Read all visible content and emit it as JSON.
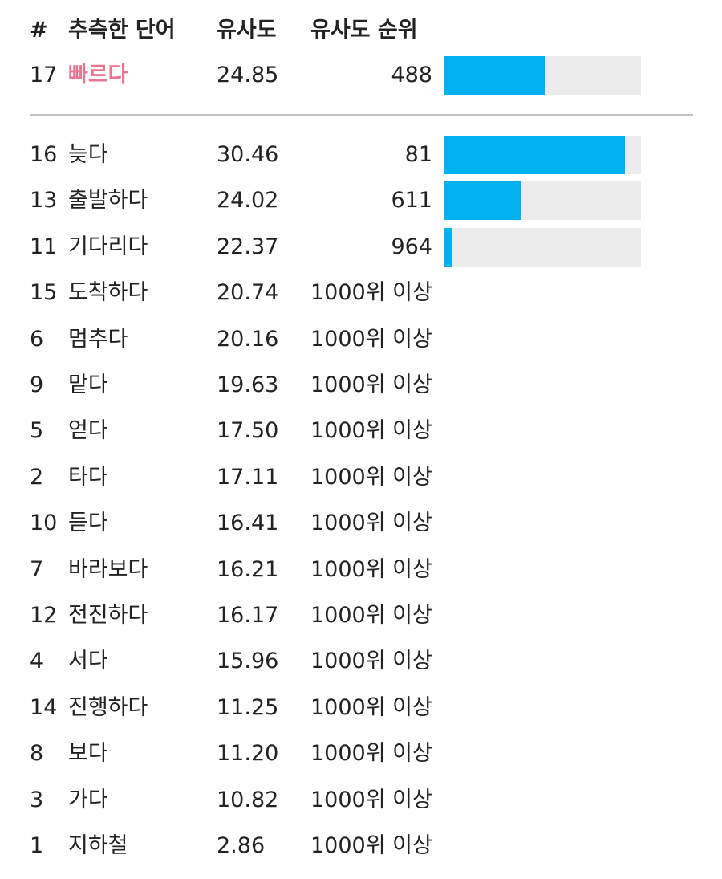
{
  "header": {
    "num": "#",
    "word": "추측한 단어",
    "similarity": "유사도",
    "rank": "유사도 순위"
  },
  "latest_guess": {
    "num": "17",
    "word": "빠르다",
    "similarity": "24.85",
    "rank": "488",
    "rank_progress": 0.512
  },
  "guesses": [
    {
      "num": "16",
      "word": "늦다",
      "similarity": "30.46",
      "rank": "81",
      "rank_progress": 0.919
    },
    {
      "num": "13",
      "word": "출발하다",
      "similarity": "24.02",
      "rank": "611",
      "rank_progress": 0.389
    },
    {
      "num": "11",
      "word": "기다리다",
      "similarity": "22.37",
      "rank": "964",
      "rank_progress": 0.036
    },
    {
      "num": "15",
      "word": "도착하다",
      "similarity": "20.74",
      "rank": "1000위 이상"
    },
    {
      "num": "6",
      "word": "멈추다",
      "similarity": "20.16",
      "rank": "1000위 이상"
    },
    {
      "num": "9",
      "word": "맡다",
      "similarity": "19.63",
      "rank": "1000위 이상"
    },
    {
      "num": "5",
      "word": "얻다",
      "similarity": "17.50",
      "rank": "1000위 이상"
    },
    {
      "num": "2",
      "word": "타다",
      "similarity": "17.11",
      "rank": "1000위 이상"
    },
    {
      "num": "10",
      "word": "듣다",
      "similarity": "16.41",
      "rank": "1000위 이상"
    },
    {
      "num": "7",
      "word": "바라보다",
      "similarity": "16.21",
      "rank": "1000위 이상"
    },
    {
      "num": "12",
      "word": "전진하다",
      "similarity": "16.17",
      "rank": "1000위 이상"
    },
    {
      "num": "4",
      "word": "서다",
      "similarity": "15.96",
      "rank": "1000위 이상"
    },
    {
      "num": "14",
      "word": "진행하다",
      "similarity": "11.25",
      "rank": "1000위 이상"
    },
    {
      "num": "8",
      "word": "보다",
      "similarity": "11.20",
      "rank": "1000위 이상"
    },
    {
      "num": "3",
      "word": "가다",
      "similarity": "10.82",
      "rank": "1000위 이상"
    },
    {
      "num": "1",
      "word": "지하철",
      "similarity": "2.86",
      "rank": "1000위 이상"
    }
  ],
  "colors": {
    "highlight": "#e8768f",
    "bar_fill": "#00b3f0",
    "bar_track": "#ececec"
  }
}
